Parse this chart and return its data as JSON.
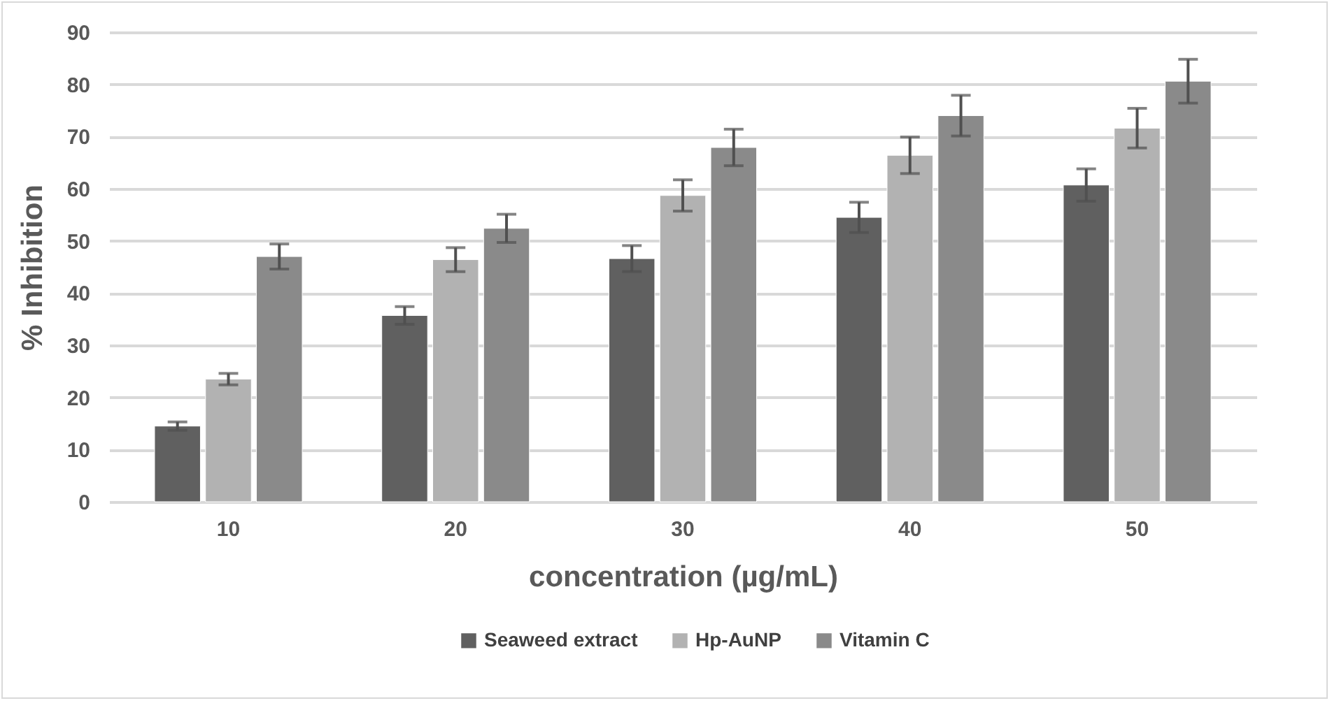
{
  "chart_data": {
    "type": "bar",
    "xlabel": "concentration (µg/mL)",
    "ylabel": "% Inhibition",
    "categories": [
      "10",
      "20",
      "30",
      "40",
      "50"
    ],
    "series": [
      {
        "name": "Seaweed extract",
        "color": "#606060",
        "values": [
          14.5,
          35.7,
          46.6,
          54.5,
          60.7
        ],
        "errors": [
          0.8,
          1.7,
          2.5,
          2.9,
          3.1
        ]
      },
      {
        "name": "Hp-AuNP",
        "color": "#b2b2b2",
        "values": [
          23.5,
          46.4,
          58.7,
          66.4,
          71.6
        ],
        "errors": [
          1.1,
          2.3,
          3.0,
          3.5,
          3.8
        ]
      },
      {
        "name": "Vitamin C",
        "color": "#8a8a8a",
        "values": [
          47.0,
          52.4,
          67.9,
          74.0,
          80.6
        ],
        "errors": [
          2.4,
          2.7,
          3.5,
          3.9,
          4.2
        ]
      }
    ],
    "ylim": [
      0,
      90
    ],
    "yticks": [
      0,
      10,
      20,
      30,
      40,
      50,
      60,
      70,
      80,
      90
    ],
    "grid": "y",
    "legend": "bottom"
  }
}
